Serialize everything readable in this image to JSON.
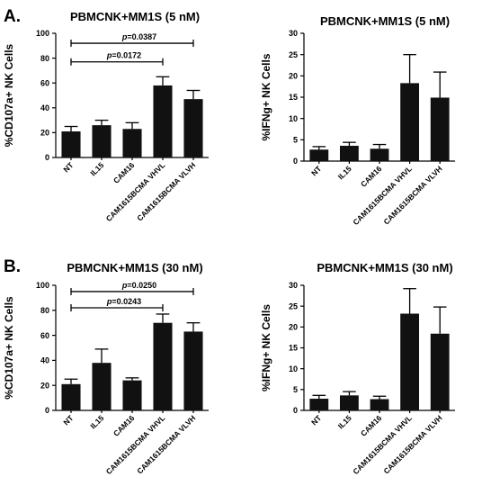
{
  "panel_letters": [
    "A.",
    "B."
  ],
  "chart_data": [
    {
      "type": "bar",
      "title": "PBMCNK+MM1S  (5 nM)",
      "ylabel": "%CD107a+ NK Cells",
      "categories": [
        "NT",
        "IL15",
        "CAM16",
        "CAM1615BCMA VHVL",
        "CAM1615BCMA VLVH"
      ],
      "values": [
        21,
        26,
        23,
        58,
        47
      ],
      "errors": [
        4,
        4,
        5,
        7,
        7
      ],
      "ylim": [
        0,
        100
      ],
      "yticks": [
        0,
        20,
        40,
        60,
        80,
        100
      ],
      "annotations": [
        {
          "p_label": "p",
          "text": "=0.0387",
          "from": 0,
          "to": 4,
          "y": 92
        },
        {
          "p_label": "p",
          "text": "=0.0172",
          "from": 0,
          "to": 3,
          "y": 77
        }
      ]
    },
    {
      "type": "bar",
      "title": "PBMCNK+MM1S  (5 nM)",
      "ylabel": "%IFNg+ NK Cells",
      "categories": [
        "NT",
        "IL15",
        "CAM16",
        "CAM1615BCMA VHVL",
        "CAM1615BCMA VLVH"
      ],
      "values": [
        2.7,
        3.6,
        2.9,
        18.3,
        14.9
      ],
      "errors": [
        0.7,
        0.8,
        1.0,
        6.7,
        6.0
      ],
      "ylim": [
        0,
        30
      ],
      "yticks": [
        0,
        5,
        10,
        15,
        20,
        25,
        30
      ],
      "annotations": []
    },
    {
      "type": "bar",
      "title": "PBMCNK+MM1S  (30 nM)",
      "ylabel": "%CD107a+ NK Cells",
      "categories": [
        "NT",
        "IL15",
        "CAM16",
        "CAM1615BCMA VHVL",
        "CAM1615BCMA VLVH"
      ],
      "values": [
        21,
        38,
        24,
        70,
        63
      ],
      "errors": [
        4,
        11,
        2,
        7,
        7
      ],
      "ylim": [
        0,
        100
      ],
      "yticks": [
        0,
        20,
        40,
        60,
        80,
        100
      ],
      "annotations": [
        {
          "p_label": "p",
          "text": "=0.0250",
          "from": 0,
          "to": 4,
          "y": 95
        },
        {
          "p_label": "p",
          "text": "=0.0243",
          "from": 0,
          "to": 3,
          "y": 82
        }
      ]
    },
    {
      "type": "bar",
      "title": "PBMCNK+MM1S  (30 nM)",
      "ylabel": "%IFNg+ NK Cells",
      "categories": [
        "NT",
        "IL15",
        "CAM16",
        "CAM1615BCMA VHVL",
        "CAM1615BCMA VLVH"
      ],
      "values": [
        2.8,
        3.6,
        2.7,
        23.2,
        18.4
      ],
      "errors": [
        0.8,
        0.9,
        0.7,
        6.0,
        6.4
      ],
      "ylim": [
        0,
        30
      ],
      "yticks": [
        0,
        5,
        10,
        15,
        20,
        25,
        30
      ],
      "annotations": []
    }
  ]
}
